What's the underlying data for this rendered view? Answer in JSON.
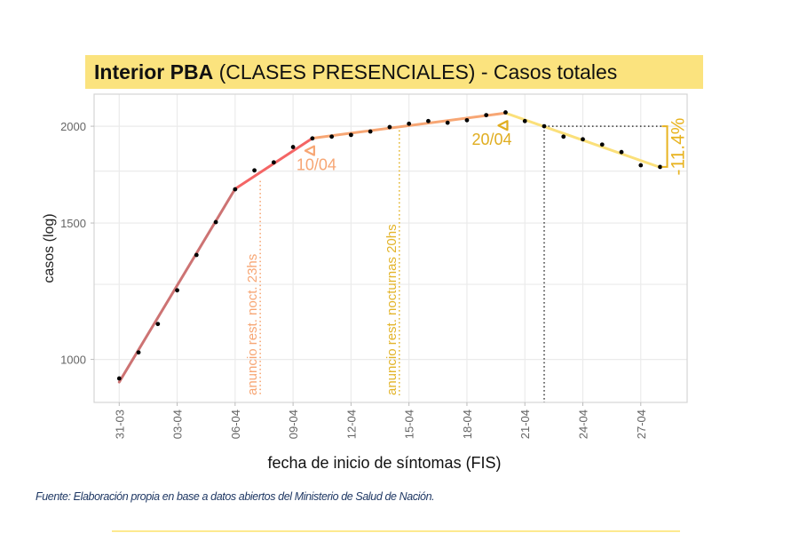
{
  "title": {
    "bold": "Interior PBA",
    "rest": " (CLASES PRESENCIALES) - Casos totales"
  },
  "source": "Fuente: Elaboración propia en base a datos abiertos del Ministerio de Salud de Nación.",
  "chart_data": {
    "type": "line",
    "title": "Interior PBA (CLASES PRESENCIALES) - Casos totales",
    "xlabel": "fecha de inicio de síntomas (FIS)",
    "ylabel": "casos (log)",
    "y_scale": "log",
    "ylim": [
      880,
      2200
    ],
    "y_ticks": [
      1000,
      1500,
      2000
    ],
    "y_tick_labels": [
      "1000",
      "1500",
      "2000"
    ],
    "y_minor_ticks": [
      1250,
      1750
    ],
    "x_start_date": "31-03",
    "xlim_days": [
      -1.3,
      29.4
    ],
    "x_tick_days": [
      0,
      3,
      6,
      9,
      12,
      15,
      18,
      21,
      24,
      27
    ],
    "x_tick_labels": [
      "31-03",
      "03-04",
      "06-04",
      "09-04",
      "12-04",
      "15-04",
      "18-04",
      "21-04",
      "24-04",
      "27-04"
    ],
    "grid": true,
    "points": {
      "day": [
        0,
        1,
        2,
        3,
        4,
        5,
        6,
        7,
        8,
        9,
        10,
        11,
        12,
        13,
        14,
        15,
        16,
        17,
        18,
        19,
        20,
        21,
        22,
        23,
        24,
        25,
        26,
        27,
        28
      ],
      "casos": [
        945,
        1021,
        1111,
        1228,
        1364,
        1504,
        1658,
        1754,
        1796,
        1880,
        1929,
        1939,
        1949,
        1969,
        1995,
        2015,
        2031,
        2021,
        2036,
        2067,
        2084,
        2031,
        2000,
        1939,
        1924,
        1894,
        1852,
        1781,
        1772
      ],
      "color": "#000000"
    },
    "fit_segments": [
      {
        "name": "tramo-1",
        "from_day": 0,
        "to_day": 6,
        "from": 935,
        "to": 1660,
        "color": "#cd7373"
      },
      {
        "name": "tramo-2",
        "from_day": 6,
        "to_day": 10,
        "from": 1660,
        "to": 1930,
        "color": "#f46565"
      },
      {
        "name": "tramo-3",
        "from_day": 10,
        "to_day": 20,
        "from": 1930,
        "to": 2080,
        "color": "#f7a674"
      },
      {
        "name": "tramo-4",
        "from_day": 20,
        "to_day": 28,
        "from": 2080,
        "to": 1770,
        "color": "#fbe07a"
      }
    ],
    "event_lines": [
      {
        "day": 7.3,
        "label": "anuncio rest. noct. 23hs",
        "color": "#f7a674"
      },
      {
        "day": 14.5,
        "label": "anuncio rest. nocturnas 20hs",
        "color": "#e3b42a"
      }
    ],
    "breakpoint_annotations": [
      {
        "day": 10,
        "label": "10/04",
        "color": "#f7a674",
        "marker": "triangle-left"
      },
      {
        "day": 20,
        "label": "20/04",
        "color": "#e0ad1f",
        "marker": "triangle-left"
      }
    ],
    "reference": {
      "day": 22,
      "value": 2000,
      "color": "#333333"
    },
    "change_annotation": {
      "label": "-11.4%",
      "from": 2000,
      "to": 1772,
      "color": "#e8b320"
    }
  }
}
